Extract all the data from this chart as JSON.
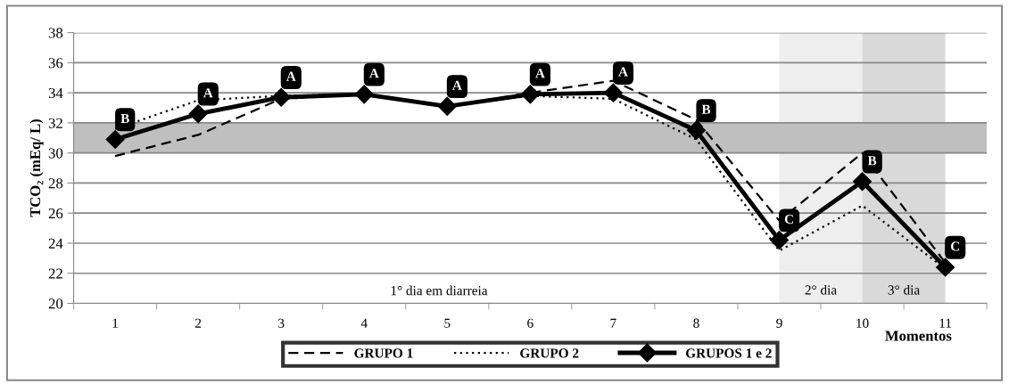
{
  "chart_data": {
    "type": "line",
    "ylabel": "TCO₂ (mEq/ L)",
    "xlabel": "Momentos",
    "categories": [
      "1",
      "2",
      "3",
      "4",
      "5",
      "6",
      "7",
      "8",
      "9",
      "10",
      "11"
    ],
    "series": [
      {
        "name": "GRUPO 1",
        "color": "#000000",
        "line_style": "dashed",
        "marker": "none",
        "values": [
          29.8,
          31.2,
          33.6,
          33.9,
          33.1,
          34.0,
          34.8,
          32.2,
          25.5,
          30.0,
          22.7
        ]
      },
      {
        "name": "GRUPO 2",
        "color": "#000000",
        "line_style": "dotted",
        "marker": "none",
        "values": [
          31.6,
          33.5,
          33.8,
          33.9,
          33.1,
          33.8,
          33.6,
          30.9,
          23.5,
          26.5,
          22.3
        ]
      },
      {
        "name": "GRUPOS 1 e 2",
        "color": "#000000",
        "line_style": "solid",
        "marker": "diamond",
        "values": [
          30.9,
          32.6,
          33.7,
          33.9,
          33.1,
          33.9,
          34.0,
          31.5,
          24.2,
          28.1,
          22.4
        ]
      }
    ],
    "ylim": [
      20,
      38
    ],
    "yticks": [
      20,
      22,
      24,
      26,
      28,
      30,
      32,
      34,
      36,
      38
    ],
    "grid": "y",
    "legend": "bottom",
    "bands": [
      {
        "axis": "y",
        "from": 30,
        "to": 32,
        "color": "#bfbfbf"
      },
      {
        "axis": "x",
        "from": "9",
        "to": "10",
        "label": "2° dia",
        "color": "#eeeeee"
      },
      {
        "axis": "x",
        "from": "10",
        "to": "11",
        "label": "3° dia",
        "color": "#d9d9d9"
      }
    ],
    "annotations": [
      "1° dia em diarreia",
      {
        "text": "B",
        "x": "1",
        "y": 30.9
      },
      {
        "text": "A",
        "x": "2",
        "y": 32.6
      },
      {
        "text": "A",
        "x": "3",
        "y": 33.7
      },
      {
        "text": "A",
        "x": "4",
        "y": 33.9
      },
      {
        "text": "A",
        "x": "5",
        "y": 33.1
      },
      {
        "text": "A",
        "x": "6",
        "y": 33.9
      },
      {
        "text": "A",
        "x": "7",
        "y": 34.0
      },
      {
        "text": "B",
        "x": "8",
        "y": 31.5
      },
      {
        "text": "C",
        "x": "9",
        "y": 24.2
      },
      {
        "text": "B",
        "x": "10",
        "y": 28.1
      },
      {
        "text": "C",
        "x": "11",
        "y": 22.4
      }
    ]
  }
}
